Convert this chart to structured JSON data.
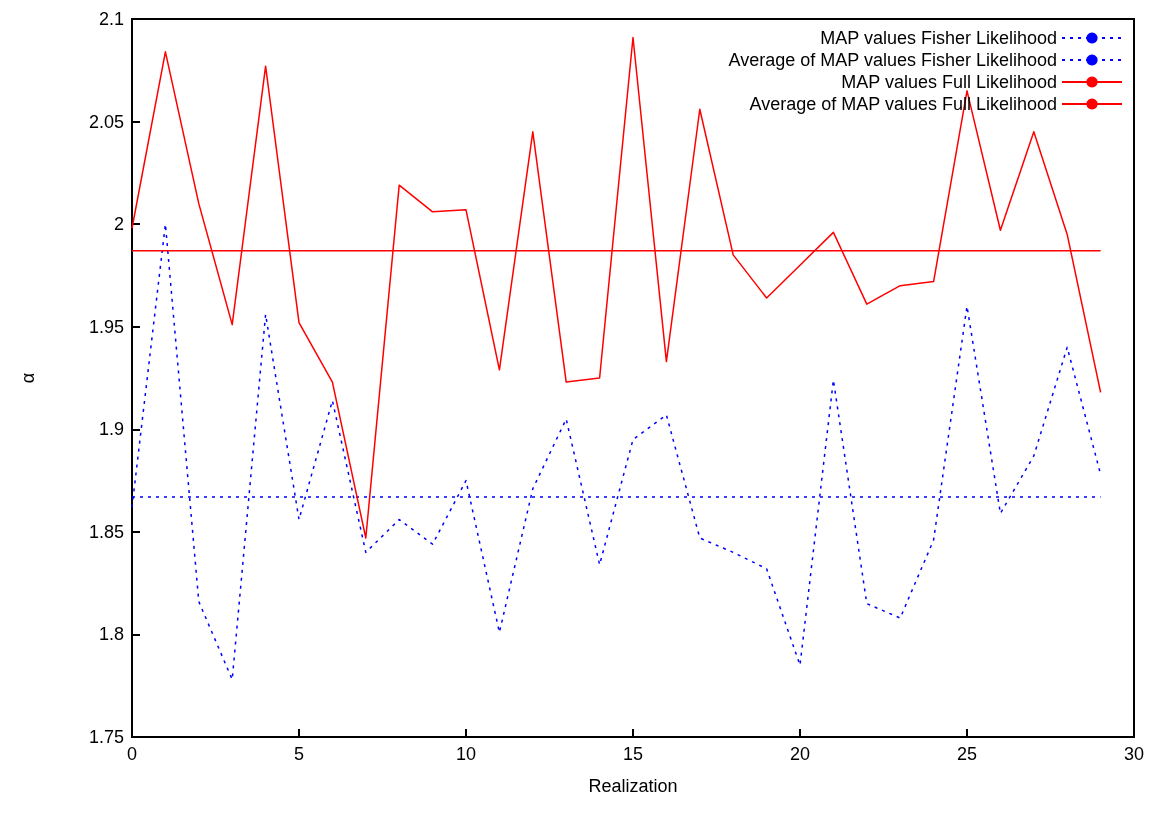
{
  "chart_data": {
    "type": "line",
    "xlabel": "Realization",
    "ylabel": "α",
    "xlim": [
      0,
      30
    ],
    "xticks": [
      0,
      5,
      10,
      15,
      20,
      25,
      30
    ],
    "ylim": [
      1.75,
      2.1
    ],
    "yticks": [
      1.75,
      1.8,
      1.85,
      1.9,
      1.95,
      2,
      2.05,
      2.1
    ],
    "grid": false,
    "legend": "top right",
    "marker": "none",
    "series": [
      {
        "name": "MAP values Fisher Likelihood",
        "color": "#0000ff",
        "line_style": "dotted",
        "x": [
          0,
          1,
          2,
          3,
          4,
          5,
          6,
          7,
          8,
          9,
          10,
          11,
          12,
          13,
          14,
          15,
          16,
          17,
          18,
          19,
          20,
          21,
          22,
          23,
          24,
          25,
          26,
          27,
          28,
          29
        ],
        "values": [
          1.862,
          2.0,
          1.816,
          1.778,
          1.956,
          1.856,
          1.914,
          1.84,
          1.856,
          1.844,
          1.875,
          1.801,
          1.871,
          1.905,
          1.834,
          1.895,
          1.907,
          1.847,
          1.84,
          1.832,
          1.785,
          1.924,
          1.815,
          1.808,
          1.846,
          1.96,
          1.859,
          1.887,
          1.94,
          1.878
        ]
      },
      {
        "name": "Average of MAP values Fisher Likelihood",
        "color": "#0000ff",
        "line_style": "dotted",
        "x": [
          0,
          29
        ],
        "values": [
          1.867,
          1.867
        ]
      },
      {
        "name": "MAP values Full Likelihood",
        "color": "#ff0000",
        "line_style": "solid",
        "x": [
          0,
          1,
          2,
          3,
          4,
          5,
          6,
          7,
          8,
          9,
          10,
          11,
          12,
          13,
          14,
          15,
          16,
          17,
          18,
          19,
          20,
          21,
          22,
          23,
          24,
          25,
          26,
          27,
          28,
          29
        ],
        "values": [
          1.998,
          2.084,
          2.01,
          1.951,
          2.077,
          1.952,
          1.923,
          1.847,
          2.019,
          2.006,
          2.007,
          1.929,
          2.045,
          1.923,
          1.925,
          2.091,
          1.933,
          2.056,
          1.985,
          1.964,
          1.98,
          1.996,
          1.961,
          1.97,
          1.972,
          2.065,
          1.997,
          2.045,
          1.995,
          1.918
        ]
      },
      {
        "name": "Average of MAP values Full Likelihood",
        "color": "#ff0000",
        "line_style": "solid",
        "x": [
          0,
          29
        ],
        "values": [
          1.987,
          1.987
        ]
      }
    ]
  }
}
